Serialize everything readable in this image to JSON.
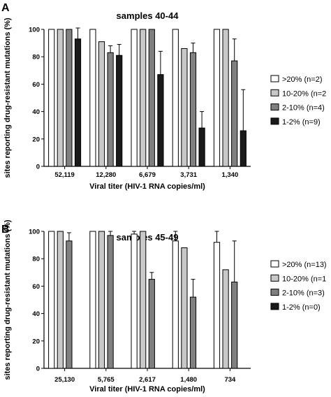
{
  "chart_data": [
    {
      "type": "bar",
      "panel_label": "A",
      "title": "samples 40-44",
      "xlabel": "Viral titer (HIV-1 RNA copies/ml)",
      "ylabel": "sites reporting drug-resistant mutations (%)",
      "ylim": [
        0,
        100
      ],
      "yticks": [
        "0",
        "20",
        "40",
        "60",
        "80",
        "100"
      ],
      "categories": [
        "52,119",
        "12,280",
        "6,679",
        "3,731",
        "1,340"
      ],
      "legend_position": "right",
      "series": [
        {
          "name": ">20% (n=2)",
          "color": "#ffffff",
          "values": [
            100,
            100,
            100,
            100,
            100
          ],
          "err": [
            0,
            0,
            0,
            0,
            0
          ]
        },
        {
          "name": "10-20% (n=2",
          "color": "#c8c8c8",
          "values": [
            100,
            91,
            100,
            86,
            100
          ],
          "err": [
            0,
            0,
            0,
            0,
            0
          ]
        },
        {
          "name": "2-10% (n=4)",
          "color": "#808080",
          "values": [
            100,
            83,
            100,
            83,
            77
          ],
          "err": [
            0,
            5,
            0,
            7,
            16
          ]
        },
        {
          "name": "1-2% (n=9)",
          "color": "#1a1a1a",
          "values": [
            93,
            81,
            67,
            28,
            26
          ],
          "err": [
            8,
            8,
            17,
            12,
            30
          ]
        }
      ]
    },
    {
      "type": "bar",
      "panel_label": "B",
      "title": "samples 45-49",
      "xlabel": "Viral titer (HIV-1 RNA copies/ml)",
      "ylabel": "sites reporting drug-resistant mutations (%)",
      "ylim": [
        0,
        100
      ],
      "yticks": [
        "0",
        "20",
        "40",
        "60",
        "80",
        "100"
      ],
      "categories": [
        "25,130",
        "5,765",
        "2,617",
        "1,480",
        "734"
      ],
      "legend_position": "right",
      "series": [
        {
          "name": ">20% (n=13)",
          "color": "#ffffff",
          "values": [
            100,
            100,
            98,
            93,
            92
          ],
          "err": [
            0,
            0,
            2,
            7,
            8
          ]
        },
        {
          "name": "10-20% (n=1",
          "color": "#c8c8c8",
          "values": [
            100,
            100,
            100,
            88,
            72
          ],
          "err": [
            0,
            0,
            0,
            0,
            0
          ]
        },
        {
          "name": "2-10% (n=3)",
          "color": "#808080",
          "values": [
            93,
            97,
            65,
            52,
            63
          ],
          "err": [
            6,
            3,
            5,
            13,
            30
          ]
        },
        {
          "name": "1-2% (n=0)",
          "color": "#1a1a1a",
          "values": [
            0,
            0,
            0,
            0,
            0
          ],
          "err": [
            0,
            0,
            0,
            0,
            0
          ]
        }
      ]
    }
  ]
}
